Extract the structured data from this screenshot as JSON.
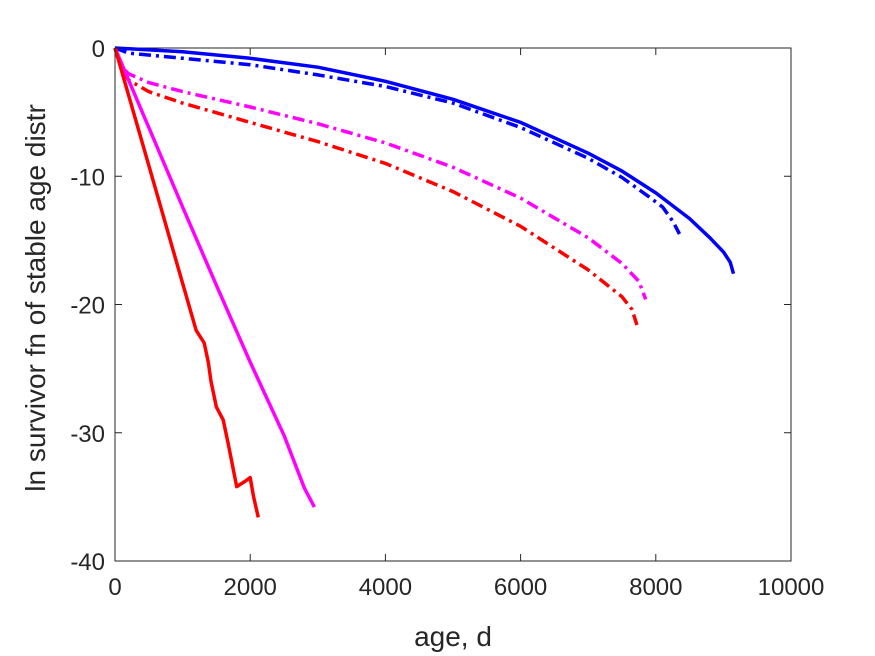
{
  "chart_data": {
    "type": "line",
    "title": "",
    "xlabel": "age, d",
    "ylabel": "ln survivor fn of stable age distr",
    "xlim": [
      0,
      10000
    ],
    "ylim": [
      -40,
      0
    ],
    "xticks": [
      0,
      2000,
      4000,
      6000,
      8000,
      10000
    ],
    "yticks": [
      0,
      -10,
      -20,
      -30,
      -40
    ],
    "xtick_labels": [
      "0",
      "2000",
      "4000",
      "6000",
      "8000",
      "10000"
    ],
    "ytick_labels": [
      "0",
      "-10",
      "-20",
      "-30",
      "-40"
    ],
    "grid": false,
    "legend": "none",
    "series": [
      {
        "color": "#0000ff",
        "style": "solid",
        "x": [
          0,
          1000,
          2000,
          3000,
          4000,
          5000,
          6000,
          7000,
          7500,
          8000,
          8500,
          8800,
          9000,
          9100,
          9150
        ],
        "y": [
          0,
          -0.3,
          -0.8,
          -1.5,
          -2.6,
          -4.0,
          -5.8,
          -8.2,
          -9.6,
          -11.3,
          -13.3,
          -14.8,
          -15.9,
          -16.7,
          -17.6
        ]
      },
      {
        "color": "#0000ff",
        "style": "dashdot",
        "x": [
          0,
          200,
          1000,
          2000,
          3000,
          4000,
          5000,
          6000,
          7000,
          7500,
          7900,
          8100,
          8250,
          8350
        ],
        "y": [
          0,
          -0.4,
          -0.8,
          -1.3,
          -2.1,
          -3.0,
          -4.3,
          -6.2,
          -8.6,
          -10.1,
          -11.6,
          -12.4,
          -13.5,
          -14.5
        ]
      },
      {
        "color": "#ff00ff",
        "style": "dashdot",
        "x": [
          0,
          100,
          200,
          500,
          1000,
          2000,
          3000,
          4000,
          5000,
          6000,
          7000,
          7500,
          7750,
          7850
        ],
        "y": [
          0,
          -1.5,
          -2.0,
          -2.7,
          -3.4,
          -4.6,
          -5.9,
          -7.4,
          -9.3,
          -11.7,
          -14.8,
          -16.8,
          -18.2,
          -19.6
        ]
      },
      {
        "color": "#ff0000",
        "style": "dashdot",
        "x": [
          0,
          100,
          200,
          500,
          1000,
          2000,
          3000,
          4000,
          5000,
          6000,
          7000,
          7500,
          7650,
          7720
        ],
        "y": [
          0,
          -1.6,
          -2.5,
          -3.4,
          -4.3,
          -5.8,
          -7.3,
          -9.0,
          -11.2,
          -13.9,
          -17.3,
          -19.4,
          -20.4,
          -21.6
        ]
      },
      {
        "color": "#ff00ff",
        "style": "solid",
        "x": [
          0,
          500,
          1000,
          1500,
          2000,
          2500,
          2800,
          2950
        ],
        "y": [
          0,
          -6.2,
          -12.4,
          -18.5,
          -24.5,
          -30.2,
          -34.3,
          -35.8
        ]
      },
      {
        "color": "#ff0000",
        "style": "solid",
        "x": [
          0,
          300,
          600,
          900,
          1200,
          1320,
          1380,
          1420,
          1500,
          1600,
          1680,
          1800,
          1920,
          2000,
          2050,
          2120
        ],
        "y": [
          0,
          -5.5,
          -11,
          -16.5,
          -22,
          -23,
          -24.5,
          -26,
          -28,
          -29,
          -31,
          -34.2,
          -33.8,
          -33.5,
          -35,
          -36.6
        ]
      }
    ]
  }
}
